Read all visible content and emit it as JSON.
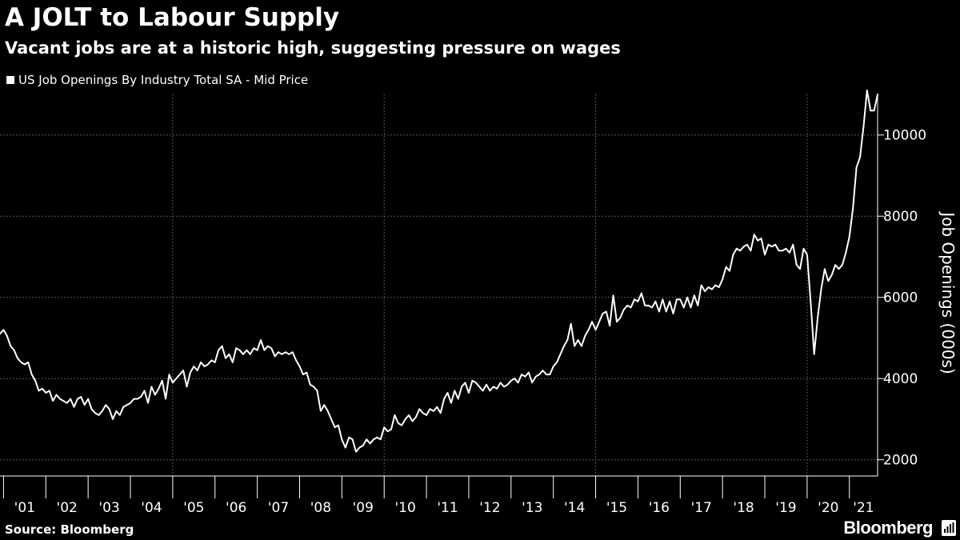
{
  "header": {
    "title": "A JOLT to Labour Supply",
    "subtitle": "Vacant jobs are at a historic high, suggesting pressure on wages"
  },
  "legend": {
    "label": "US Job Openings By Industry Total SA - Mid Price"
  },
  "colors": {
    "background": "#000000",
    "line": "#ffffff",
    "grid": "#6e6e6e",
    "axis": "#ffffff",
    "text": "#ffffff"
  },
  "chart_data": {
    "type": "line",
    "title": "A JOLT to Labour Supply",
    "subtitle": "Vacant jobs are at a historic high, suggesting pressure on wages",
    "xlabel": "",
    "ylabel": "Job Openings (000s)",
    "ylim": [
      1600,
      11000
    ],
    "xlim": [
      "2000-12",
      "2021-09"
    ],
    "y_ticks": [
      2000,
      4000,
      6000,
      8000,
      10000
    ],
    "x_tick_labels": [
      "'01",
      "'02",
      "'03",
      "'04",
      "'05",
      "'06",
      "'07",
      "'08",
      "'09",
      "'10",
      "'11",
      "'12",
      "'13",
      "'14",
      "'15",
      "'16",
      "'17",
      "'18",
      "'19",
      "'20",
      "'21"
    ],
    "grid": true,
    "grid_style": "dotted",
    "y_axis_position": "right",
    "legend_position": "top-left",
    "series": [
      {
        "name": "US Job Openings By Industry Total SA - Mid Price",
        "points": [
          [
            "2000-12",
            5100
          ],
          [
            "2001-01",
            5200
          ],
          [
            "2001-02",
            5050
          ],
          [
            "2001-03",
            4800
          ],
          [
            "2001-04",
            4700
          ],
          [
            "2001-05",
            4500
          ],
          [
            "2001-06",
            4400
          ],
          [
            "2001-07",
            4350
          ],
          [
            "2001-08",
            4400
          ],
          [
            "2001-09",
            4100
          ],
          [
            "2001-10",
            3950
          ],
          [
            "2001-11",
            3700
          ],
          [
            "2001-12",
            3750
          ],
          [
            "2002-01",
            3650
          ],
          [
            "2002-02",
            3700
          ],
          [
            "2002-03",
            3450
          ],
          [
            "2002-04",
            3600
          ],
          [
            "2002-05",
            3500
          ],
          [
            "2002-06",
            3450
          ],
          [
            "2002-07",
            3400
          ],
          [
            "2002-08",
            3500
          ],
          [
            "2002-09",
            3300
          ],
          [
            "2002-10",
            3500
          ],
          [
            "2002-11",
            3550
          ],
          [
            "2002-12",
            3350
          ],
          [
            "2003-01",
            3500
          ],
          [
            "2003-02",
            3250
          ],
          [
            "2003-03",
            3150
          ],
          [
            "2003-04",
            3100
          ],
          [
            "2003-05",
            3200
          ],
          [
            "2003-06",
            3350
          ],
          [
            "2003-07",
            3250
          ],
          [
            "2003-08",
            3000
          ],
          [
            "2003-09",
            3200
          ],
          [
            "2003-10",
            3100
          ],
          [
            "2003-11",
            3300
          ],
          [
            "2003-12",
            3350
          ],
          [
            "2004-01",
            3400
          ],
          [
            "2004-02",
            3500
          ],
          [
            "2004-03",
            3500
          ],
          [
            "2004-04",
            3550
          ],
          [
            "2004-05",
            3700
          ],
          [
            "2004-06",
            3400
          ],
          [
            "2004-07",
            3800
          ],
          [
            "2004-08",
            3600
          ],
          [
            "2004-09",
            3750
          ],
          [
            "2004-10",
            3950
          ],
          [
            "2004-11",
            3500
          ],
          [
            "2004-12",
            4100
          ],
          [
            "2005-01",
            3900
          ],
          [
            "2005-02",
            4000
          ],
          [
            "2005-03",
            4100
          ],
          [
            "2005-04",
            4200
          ],
          [
            "2005-05",
            3800
          ],
          [
            "2005-06",
            4150
          ],
          [
            "2005-07",
            4300
          ],
          [
            "2005-08",
            4200
          ],
          [
            "2005-09",
            4400
          ],
          [
            "2005-10",
            4300
          ],
          [
            "2005-11",
            4350
          ],
          [
            "2005-12",
            4450
          ],
          [
            "2006-01",
            4400
          ],
          [
            "2006-02",
            4700
          ],
          [
            "2006-03",
            4800
          ],
          [
            "2006-04",
            4500
          ],
          [
            "2006-05",
            4600
          ],
          [
            "2006-06",
            4400
          ],
          [
            "2006-07",
            4750
          ],
          [
            "2006-08",
            4700
          ],
          [
            "2006-09",
            4600
          ],
          [
            "2006-10",
            4700
          ],
          [
            "2006-11",
            4600
          ],
          [
            "2006-12",
            4750
          ],
          [
            "2007-01",
            4700
          ],
          [
            "2007-02",
            4950
          ],
          [
            "2007-03",
            4700
          ],
          [
            "2007-04",
            4800
          ],
          [
            "2007-05",
            4750
          ],
          [
            "2007-06",
            4550
          ],
          [
            "2007-07",
            4650
          ],
          [
            "2007-08",
            4600
          ],
          [
            "2007-09",
            4650
          ],
          [
            "2007-10",
            4600
          ],
          [
            "2007-11",
            4650
          ],
          [
            "2007-12",
            4450
          ],
          [
            "2008-01",
            4300
          ],
          [
            "2008-02",
            4100
          ],
          [
            "2008-03",
            4150
          ],
          [
            "2008-04",
            3850
          ],
          [
            "2008-05",
            3800
          ],
          [
            "2008-06",
            3700
          ],
          [
            "2008-07",
            3200
          ],
          [
            "2008-08",
            3350
          ],
          [
            "2008-09",
            3200
          ],
          [
            "2008-10",
            3000
          ],
          [
            "2008-11",
            2800
          ],
          [
            "2008-12",
            2850
          ],
          [
            "2009-01",
            2500
          ],
          [
            "2009-02",
            2300
          ],
          [
            "2009-03",
            2550
          ],
          [
            "2009-04",
            2500
          ],
          [
            "2009-05",
            2200
          ],
          [
            "2009-06",
            2300
          ],
          [
            "2009-07",
            2350
          ],
          [
            "2009-08",
            2500
          ],
          [
            "2009-09",
            2400
          ],
          [
            "2009-10",
            2500
          ],
          [
            "2009-11",
            2550
          ],
          [
            "2009-12",
            2500
          ],
          [
            "2010-01",
            2800
          ],
          [
            "2010-02",
            2700
          ],
          [
            "2010-03",
            2750
          ],
          [
            "2010-04",
            3100
          ],
          [
            "2010-05",
            2900
          ],
          [
            "2010-06",
            2850
          ],
          [
            "2010-07",
            3000
          ],
          [
            "2010-08",
            3100
          ],
          [
            "2010-09",
            2950
          ],
          [
            "2010-10",
            3050
          ],
          [
            "2010-11",
            3250
          ],
          [
            "2010-12",
            3150
          ],
          [
            "2011-01",
            3100
          ],
          [
            "2011-02",
            3250
          ],
          [
            "2011-03",
            3200
          ],
          [
            "2011-04",
            3300
          ],
          [
            "2011-05",
            3150
          ],
          [
            "2011-06",
            3500
          ],
          [
            "2011-07",
            3650
          ],
          [
            "2011-08",
            3400
          ],
          [
            "2011-09",
            3700
          ],
          [
            "2011-10",
            3500
          ],
          [
            "2011-11",
            3800
          ],
          [
            "2011-12",
            3900
          ],
          [
            "2012-01",
            3650
          ],
          [
            "2012-02",
            3950
          ],
          [
            "2012-03",
            3900
          ],
          [
            "2012-04",
            3800
          ],
          [
            "2012-05",
            3700
          ],
          [
            "2012-06",
            3850
          ],
          [
            "2012-07",
            3700
          ],
          [
            "2012-08",
            3800
          ],
          [
            "2012-09",
            3750
          ],
          [
            "2012-10",
            3900
          ],
          [
            "2012-11",
            3800
          ],
          [
            "2012-12",
            3850
          ],
          [
            "2013-01",
            3950
          ],
          [
            "2013-02",
            4000
          ],
          [
            "2013-03",
            3900
          ],
          [
            "2013-04",
            4100
          ],
          [
            "2013-05",
            4050
          ],
          [
            "2013-06",
            4150
          ],
          [
            "2013-07",
            3900
          ],
          [
            "2013-08",
            4050
          ],
          [
            "2013-09",
            4100
          ],
          [
            "2013-10",
            4200
          ],
          [
            "2013-11",
            4100
          ],
          [
            "2013-12",
            4100
          ],
          [
            "2014-01",
            4300
          ],
          [
            "2014-02",
            4400
          ],
          [
            "2014-03",
            4600
          ],
          [
            "2014-04",
            4800
          ],
          [
            "2014-05",
            4950
          ],
          [
            "2014-06",
            5350
          ],
          [
            "2014-07",
            4800
          ],
          [
            "2014-08",
            4950
          ],
          [
            "2014-09",
            4800
          ],
          [
            "2014-10",
            5050
          ],
          [
            "2014-11",
            5200
          ],
          [
            "2014-12",
            5400
          ],
          [
            "2015-01",
            5200
          ],
          [
            "2015-02",
            5400
          ],
          [
            "2015-03",
            5600
          ],
          [
            "2015-04",
            5650
          ],
          [
            "2015-05",
            5300
          ],
          [
            "2015-06",
            6050
          ],
          [
            "2015-07",
            5400
          ],
          [
            "2015-08",
            5500
          ],
          [
            "2015-09",
            5700
          ],
          [
            "2015-10",
            5800
          ],
          [
            "2015-11",
            5750
          ],
          [
            "2015-12",
            5950
          ],
          [
            "2016-01",
            5900
          ],
          [
            "2016-02",
            6100
          ],
          [
            "2016-03",
            5800
          ],
          [
            "2016-04",
            5800
          ],
          [
            "2016-05",
            5750
          ],
          [
            "2016-06",
            5900
          ],
          [
            "2016-07",
            5650
          ],
          [
            "2016-08",
            5950
          ],
          [
            "2016-09",
            5650
          ],
          [
            "2016-10",
            5900
          ],
          [
            "2016-11",
            5600
          ],
          [
            "2016-12",
            5950
          ],
          [
            "2017-01",
            5950
          ],
          [
            "2017-02",
            5750
          ],
          [
            "2017-03",
            6000
          ],
          [
            "2017-04",
            5750
          ],
          [
            "2017-05",
            6050
          ],
          [
            "2017-06",
            5800
          ],
          [
            "2017-07",
            6300
          ],
          [
            "2017-08",
            6150
          ],
          [
            "2017-09",
            6250
          ],
          [
            "2017-10",
            6200
          ],
          [
            "2017-11",
            6300
          ],
          [
            "2017-12",
            6250
          ],
          [
            "2018-01",
            6450
          ],
          [
            "2018-02",
            6750
          ],
          [
            "2018-03",
            6650
          ],
          [
            "2018-04",
            7050
          ],
          [
            "2018-05",
            7200
          ],
          [
            "2018-06",
            7150
          ],
          [
            "2018-07",
            7250
          ],
          [
            "2018-08",
            7300
          ],
          [
            "2018-09",
            7150
          ],
          [
            "2018-10",
            7550
          ],
          [
            "2018-11",
            7400
          ],
          [
            "2018-12",
            7450
          ],
          [
            "2019-01",
            7050
          ],
          [
            "2019-02",
            7300
          ],
          [
            "2019-03",
            7250
          ],
          [
            "2019-04",
            7300
          ],
          [
            "2019-05",
            7150
          ],
          [
            "2019-06",
            7150
          ],
          [
            "2019-07",
            7200
          ],
          [
            "2019-08",
            7100
          ],
          [
            "2019-09",
            7300
          ],
          [
            "2019-10",
            6800
          ],
          [
            "2019-11",
            6700
          ],
          [
            "2019-12",
            7200
          ],
          [
            "2020-01",
            7050
          ],
          [
            "2020-02",
            5900
          ],
          [
            "2020-03",
            4600
          ],
          [
            "2020-04",
            5500
          ],
          [
            "2020-05",
            6200
          ],
          [
            "2020-06",
            6700
          ],
          [
            "2020-07",
            6400
          ],
          [
            "2020-08",
            6550
          ],
          [
            "2020-09",
            6800
          ],
          [
            "2020-10",
            6700
          ],
          [
            "2020-11",
            6800
          ],
          [
            "2020-12",
            7100
          ],
          [
            "2021-01",
            7500
          ],
          [
            "2021-02",
            8200
          ],
          [
            "2021-03",
            9200
          ],
          [
            "2021-04",
            9450
          ],
          [
            "2021-05",
            10200
          ],
          [
            "2021-06",
            11100
          ],
          [
            "2021-07",
            10600
          ],
          [
            "2021-08",
            10600
          ],
          [
            "2021-09",
            11000
          ]
        ]
      }
    ]
  },
  "footer": {
    "source": "Source: Bloomberg",
    "brand": "Bloomberg"
  }
}
